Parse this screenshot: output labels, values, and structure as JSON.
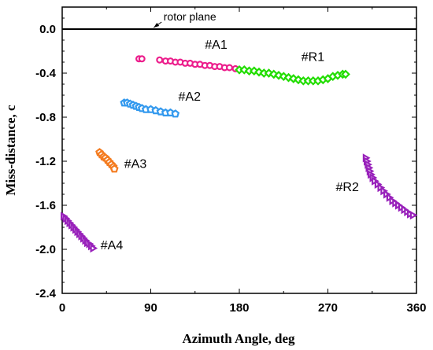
{
  "chart_data": {
    "type": "scatter",
    "xlabel": "Azimuth Angle, deg",
    "ylabel": "Miss-distance, c",
    "xlim": [
      0,
      360
    ],
    "ylim": [
      -2.4,
      0.2
    ],
    "x_ticks": [
      "0",
      "90",
      "180",
      "270",
      "360"
    ],
    "y_ticks": [
      "0.0",
      "-0.4",
      "-0.8",
      "-1.2",
      "-1.6",
      "-2.0",
      "-2.4"
    ],
    "x_tick_values": [
      0,
      90,
      180,
      270,
      360
    ],
    "y_tick_values": [
      0.0,
      -0.4,
      -0.8,
      -1.2,
      -1.6,
      -2.0,
      -2.4
    ],
    "grid": false,
    "reference_line": {
      "y": 0.0,
      "label": "rotor plane"
    },
    "series": [
      {
        "color": "#ec1e8c",
        "marker": "circle",
        "points": [
          [
            78,
            -0.27
          ],
          [
            81,
            -0.27
          ],
          [
            99,
            -0.28
          ],
          [
            105,
            -0.29
          ],
          [
            110,
            -0.29
          ],
          [
            115,
            -0.3
          ],
          [
            120,
            -0.3
          ],
          [
            125,
            -0.31
          ],
          [
            130,
            -0.31
          ],
          [
            135,
            -0.32
          ],
          [
            140,
            -0.32
          ],
          [
            145,
            -0.33
          ],
          [
            150,
            -0.33
          ],
          [
            155,
            -0.34
          ],
          [
            160,
            -0.34
          ],
          [
            165,
            -0.35
          ],
          [
            170,
            -0.35
          ],
          [
            176,
            -0.36
          ]
        ]
      },
      {
        "color": "#22dd00",
        "marker": "diamond",
        "points": [
          [
            180,
            -0.37
          ],
          [
            185,
            -0.37
          ],
          [
            190,
            -0.38
          ],
          [
            195,
            -0.38
          ],
          [
            200,
            -0.39
          ],
          [
            205,
            -0.4
          ],
          [
            210,
            -0.4
          ],
          [
            215,
            -0.41
          ],
          [
            220,
            -0.42
          ],
          [
            225,
            -0.43
          ],
          [
            230,
            -0.44
          ],
          [
            235,
            -0.45
          ],
          [
            240,
            -0.46
          ],
          [
            245,
            -0.47
          ],
          [
            250,
            -0.47
          ],
          [
            255,
            -0.47
          ],
          [
            260,
            -0.47
          ],
          [
            265,
            -0.46
          ],
          [
            270,
            -0.45
          ],
          [
            275,
            -0.43
          ],
          [
            280,
            -0.42
          ],
          [
            285,
            -0.41
          ],
          [
            288,
            -0.41
          ]
        ]
      },
      {
        "color": "#3399ee",
        "marker": "pentagon",
        "points": [
          [
            63,
            -0.67
          ],
          [
            66,
            -0.67
          ],
          [
            69,
            -0.68
          ],
          [
            72,
            -0.69
          ],
          [
            75,
            -0.7
          ],
          [
            78,
            -0.71
          ],
          [
            81,
            -0.72
          ],
          [
            85,
            -0.73
          ],
          [
            90,
            -0.73
          ],
          [
            95,
            -0.74
          ],
          [
            100,
            -0.75
          ],
          [
            105,
            -0.76
          ],
          [
            110,
            -0.76
          ],
          [
            115,
            -0.77
          ]
        ]
      },
      {
        "color": "#f47c20",
        "marker": "pentagon",
        "points": [
          [
            38,
            -1.12
          ],
          [
            40,
            -1.14
          ],
          [
            42,
            -1.16
          ],
          [
            44,
            -1.17
          ],
          [
            46,
            -1.19
          ],
          [
            48,
            -1.21
          ],
          [
            50,
            -1.23
          ],
          [
            52,
            -1.25
          ],
          [
            53,
            -1.27
          ]
        ]
      },
      {
        "color": "#9922bb",
        "marker": "triangle-right",
        "points": [
          [
            1,
            -1.7
          ],
          [
            3,
            -1.72
          ],
          [
            5,
            -1.74
          ],
          [
            7,
            -1.76
          ],
          [
            9,
            -1.78
          ],
          [
            11,
            -1.8
          ],
          [
            13,
            -1.82
          ],
          [
            15,
            -1.84
          ],
          [
            17,
            -1.86
          ],
          [
            19,
            -1.88
          ],
          [
            21,
            -1.9
          ],
          [
            23,
            -1.92
          ],
          [
            25,
            -1.94
          ],
          [
            27,
            -1.95
          ],
          [
            29,
            -1.97
          ],
          [
            31,
            -1.99
          ]
        ]
      },
      {
        "color": "#9922bb",
        "marker": "triangle-right",
        "points": [
          [
            308,
            -1.17
          ],
          [
            309,
            -1.2
          ],
          [
            310,
            -1.23
          ],
          [
            311,
            -1.26
          ],
          [
            312,
            -1.29
          ],
          [
            313,
            -1.32
          ],
          [
            315,
            -1.35
          ],
          [
            317,
            -1.38
          ],
          [
            320,
            -1.41
          ],
          [
            323,
            -1.44
          ],
          [
            326,
            -1.47
          ],
          [
            329,
            -1.5
          ],
          [
            332,
            -1.53
          ],
          [
            335,
            -1.56
          ],
          [
            338,
            -1.58
          ],
          [
            341,
            -1.6
          ],
          [
            344,
            -1.62
          ],
          [
            347,
            -1.64
          ],
          [
            350,
            -1.66
          ],
          [
            353,
            -1.68
          ],
          [
            356,
            -1.69
          ]
        ]
      }
    ],
    "annotations": [
      {
        "text": "#A1",
        "x": 145,
        "y": -0.18
      },
      {
        "text": "#R1",
        "x": 243,
        "y": -0.29
      },
      {
        "text": "#A2",
        "x": 118,
        "y": -0.65
      },
      {
        "text": "#A3",
        "x": 63,
        "y": -1.26
      },
      {
        "text": "#R2",
        "x": 278,
        "y": -1.47
      },
      {
        "text": "#A4",
        "x": 39,
        "y": -2.0
      }
    ]
  }
}
